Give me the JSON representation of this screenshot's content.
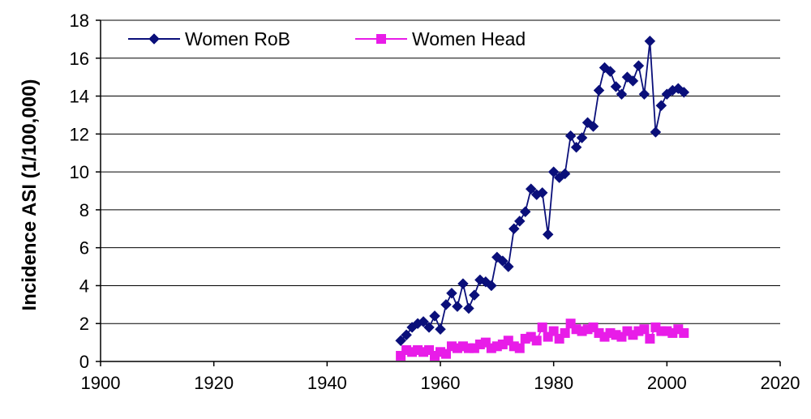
{
  "chart_data": {
    "type": "line",
    "title": "",
    "xlabel": "",
    "ylabel": "Incidence ASI (1/100,000)",
    "xlim": [
      1900,
      2020
    ],
    "ylim": [
      0,
      18
    ],
    "x_ticks": [
      1900,
      1920,
      1940,
      1960,
      1980,
      2000,
      2020
    ],
    "y_ticks": [
      0,
      2,
      4,
      6,
      8,
      10,
      12,
      14,
      16,
      18
    ],
    "grid": "horizontal",
    "legend": "top-left",
    "series": [
      {
        "name": "Women RoB",
        "color": "#0a0f7a",
        "marker": "diamond",
        "x": [
          1953,
          1954,
          1955,
          1956,
          1957,
          1958,
          1959,
          1960,
          1961,
          1962,
          1963,
          1964,
          1965,
          1966,
          1967,
          1968,
          1969,
          1970,
          1971,
          1972,
          1973,
          1974,
          1975,
          1976,
          1977,
          1978,
          1979,
          1980,
          1981,
          1982,
          1983,
          1984,
          1985,
          1986,
          1987,
          1988,
          1989,
          1990,
          1991,
          1992,
          1993,
          1994,
          1995,
          1996,
          1997,
          1998,
          1999,
          2000,
          2001,
          2002,
          2003
        ],
        "y": [
          1.1,
          1.4,
          1.8,
          2.0,
          2.1,
          1.8,
          2.4,
          1.7,
          3.0,
          3.6,
          2.9,
          4.1,
          2.8,
          3.5,
          4.3,
          4.2,
          4.0,
          5.5,
          5.3,
          5.0,
          7.0,
          7.4,
          7.9,
          9.1,
          8.8,
          8.9,
          6.7,
          10.0,
          9.7,
          9.9,
          11.9,
          11.3,
          11.8,
          12.6,
          12.4,
          14.3,
          15.5,
          15.3,
          14.5,
          14.1,
          15.0,
          14.8,
          15.6,
          14.1,
          16.9,
          12.1,
          13.5,
          14.1,
          14.3,
          14.4,
          14.2
        ]
      },
      {
        "name": "Women Head",
        "color": "#e81ce8",
        "marker": "square",
        "x": [
          1953,
          1954,
          1955,
          1956,
          1957,
          1958,
          1959,
          1960,
          1961,
          1962,
          1963,
          1964,
          1965,
          1966,
          1967,
          1968,
          1969,
          1970,
          1971,
          1972,
          1973,
          1974,
          1975,
          1976,
          1977,
          1978,
          1979,
          1980,
          1981,
          1982,
          1983,
          1984,
          1985,
          1986,
          1987,
          1988,
          1989,
          1990,
          1991,
          1992,
          1993,
          1994,
          1995,
          1996,
          1997,
          1998,
          1999,
          2000,
          2001,
          2002,
          2003
        ],
        "y": [
          0.3,
          0.6,
          0.5,
          0.6,
          0.5,
          0.6,
          0.3,
          0.5,
          0.4,
          0.8,
          0.7,
          0.8,
          0.7,
          0.7,
          0.9,
          1.0,
          0.7,
          0.8,
          0.9,
          1.1,
          0.8,
          0.7,
          1.2,
          1.3,
          1.1,
          1.8,
          1.3,
          1.6,
          1.2,
          1.5,
          2.0,
          1.7,
          1.6,
          1.7,
          1.8,
          1.5,
          1.3,
          1.5,
          1.4,
          1.3,
          1.6,
          1.4,
          1.6,
          1.7,
          1.2,
          1.8,
          1.6,
          1.6,
          1.5,
          1.7,
          1.5
        ]
      }
    ]
  }
}
